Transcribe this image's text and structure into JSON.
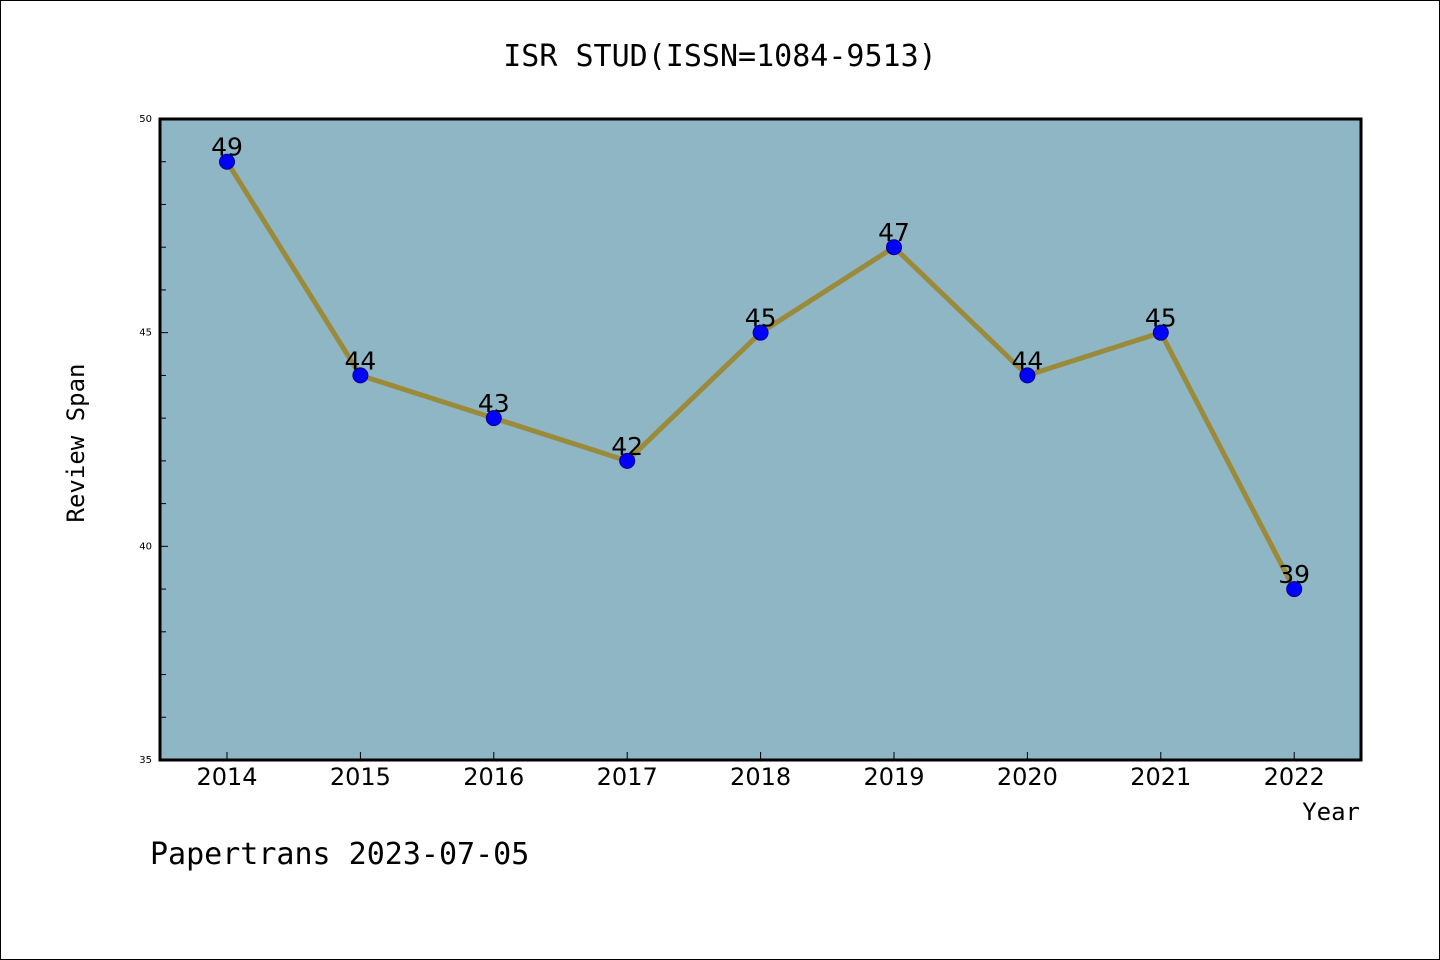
{
  "chart_data": {
    "type": "line",
    "title": "ISR STUD(ISSN=1084-9513)",
    "xlabel": "Year",
    "ylabel": "Review Span",
    "categories": [
      "2014",
      "2015",
      "2016",
      "2017",
      "2018",
      "2019",
      "2020",
      "2021",
      "2022"
    ],
    "series": [
      {
        "values": [
          49,
          44,
          43,
          42,
          45,
          47,
          44,
          45,
          39
        ]
      }
    ],
    "ylim": [
      35,
      50
    ],
    "yticks": [
      "35",
      "40",
      "45",
      "50"
    ],
    "grid": false,
    "line_color": "#9a8a3a",
    "marker_color": "#0000ff",
    "plot_background": "#8fb6c5"
  },
  "footer": "Papertrans 2023-07-05"
}
